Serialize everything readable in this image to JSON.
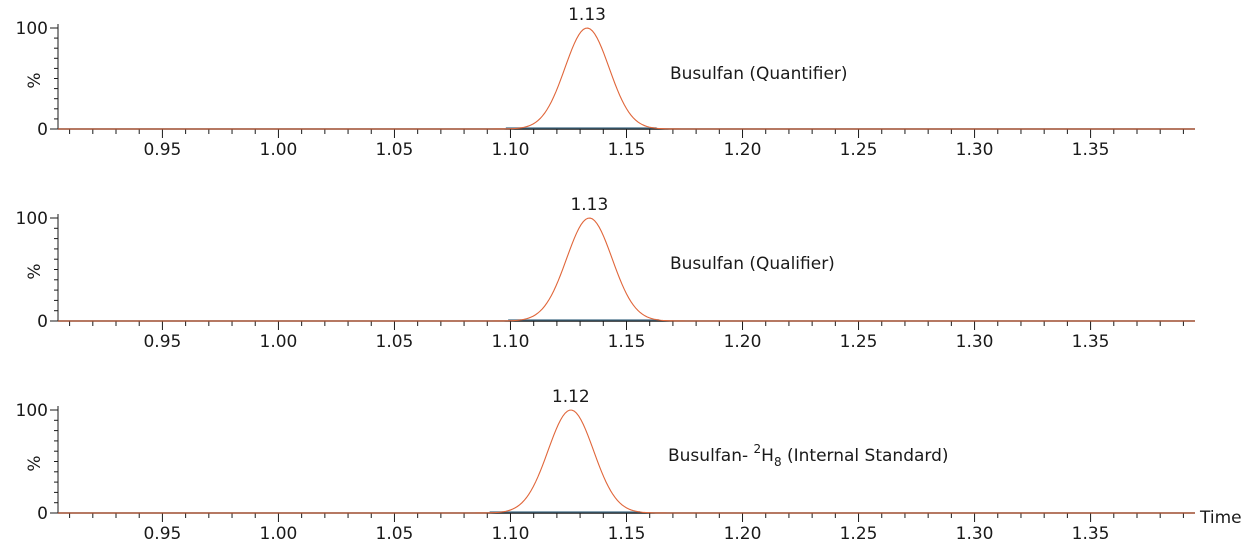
{
  "chart_data": [
    {
      "type": "line",
      "title": "",
      "annotation": "Busulfan (Quantifier)",
      "annotation_suffix": "",
      "peak_label": "1.13",
      "peak_x": 1.133,
      "peak_width": 0.0095,
      "ylabel": "%",
      "xlabel": "",
      "xlim": [
        0.905,
        1.395
      ],
      "ylim": [
        0,
        100
      ],
      "yticks": [
        "100",
        "0"
      ],
      "xticks": [
        "0.95",
        "1.00",
        "1.05",
        "1.10",
        "1.15",
        "1.20",
        "1.25",
        "1.30",
        "1.35"
      ],
      "series": [
        {
          "color": "#e0663a"
        }
      ]
    },
    {
      "type": "line",
      "title": "",
      "annotation": "Busulfan (Qualifier)",
      "annotation_suffix": "",
      "peak_label": "1.13",
      "peak_x": 1.134,
      "peak_width": 0.0098,
      "ylabel": "%",
      "xlabel": "",
      "xlim": [
        0.905,
        1.395
      ],
      "ylim": [
        0,
        100
      ],
      "yticks": [
        "100",
        "0"
      ],
      "xticks": [
        "0.95",
        "1.00",
        "1.05",
        "1.10",
        "1.15",
        "1.20",
        "1.25",
        "1.30",
        "1.35"
      ],
      "series": [
        {
          "color": "#e0663a"
        }
      ]
    },
    {
      "type": "line",
      "title": "",
      "annotation": "Busulfan-",
      "annotation_sup": "2",
      "annotation_base": "H",
      "annotation_sub": "8",
      "annotation_suffix": "(Internal Standard)",
      "peak_label": "1.12",
      "peak_x": 1.126,
      "peak_width": 0.0098,
      "ylabel": "%",
      "xlabel": "Time",
      "xlim": [
        0.905,
        1.395
      ],
      "ylim": [
        0,
        100
      ],
      "yticks": [
        "100",
        "0"
      ],
      "xticks": [
        "0.95",
        "1.00",
        "1.05",
        "1.10",
        "1.15",
        "1.20",
        "1.25",
        "1.30",
        "1.35"
      ],
      "series": [
        {
          "color": "#e0663a"
        }
      ]
    }
  ],
  "colors": {
    "trace": "#e0663a",
    "axis": "#1a1a1a",
    "baseline_tint": "#2f5f7a"
  }
}
